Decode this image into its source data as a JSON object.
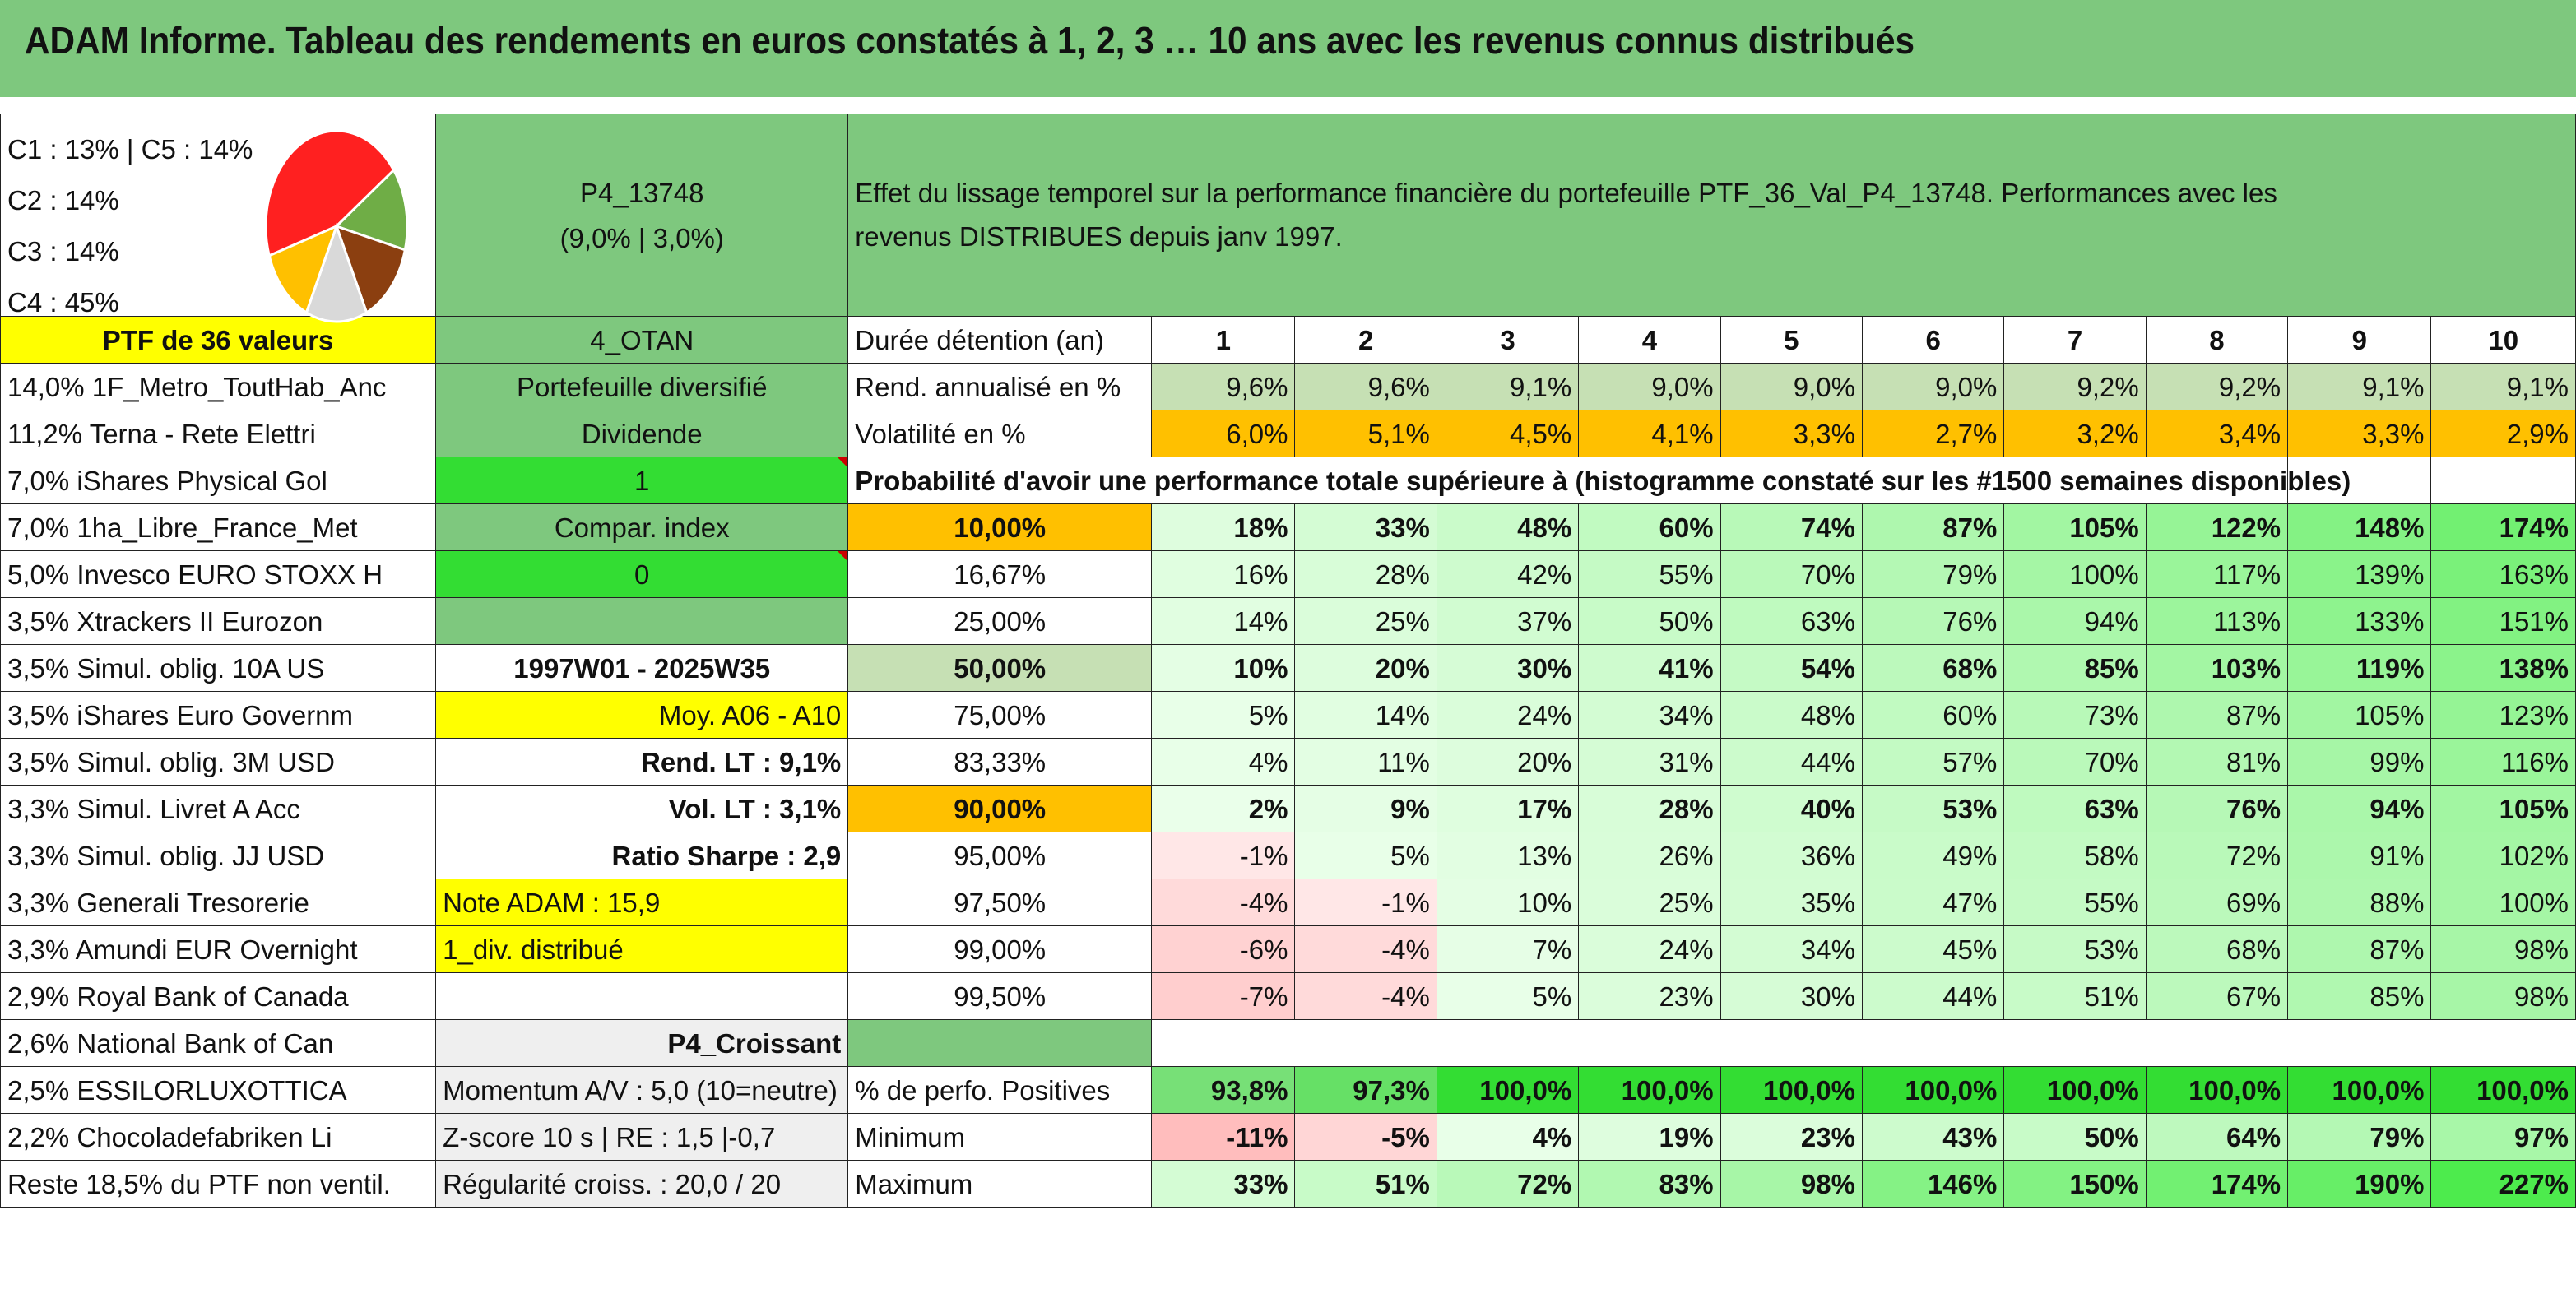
{
  "title": "ADAM Informe. Tableau des rendements en euros constatés à 1, 2, 3 … 10 ans avec les revenus connus distribués",
  "pie": {
    "labels": [
      "C1 : 13% | C5 : 14%",
      "C2 : 14%",
      "C3 : 14%",
      "C4 : 45%"
    ],
    "slices": [
      {
        "name": "C4",
        "value": 45,
        "color": "#ff2020"
      },
      {
        "name": "C5",
        "value": 14,
        "color": "#6fad46"
      },
      {
        "name": "C3",
        "value": 14,
        "color": "#8b3f10"
      },
      {
        "name": "C2",
        "value": 14,
        "color": "#d9d9d9"
      },
      {
        "name": "C1",
        "value": 13,
        "color": "#ffc000"
      }
    ]
  },
  "header": {
    "portfolio_code": "P4_13748",
    "portfolio_params": "(9,0% | 3,0%)",
    "description_line1": "Effet du lissage temporel sur la performance financière du portefeuille PTF_36_Val_P4_13748. Performances avec les",
    "description_line2": "revenus DISTRIBUES depuis janv 1997.",
    "ptf_count": "PTF de 36 valeurs",
    "group": "4_OTAN",
    "duration_label": "Durée détention (an)",
    "years": [
      "1",
      "2",
      "3",
      "4",
      "5",
      "6",
      "7",
      "8",
      "9",
      "10"
    ]
  },
  "holdings": [
    "14,0% 1F_Metro_ToutHab_Anc",
    "11,2% Terna - Rete Elettri",
    "7,0% iShares Physical Gol",
    "7,0% 1ha_Libre_France_Met",
    "5,0% Invesco EURO STOXX H",
    "3,5% Xtrackers II Eurozon",
    "3,5% Simul. oblig. 10A US",
    "3,5% iShares Euro Governm",
    "3,5% Simul. oblig. 3M USD",
    "3,3% Simul. Livret A Acc",
    "3,3% Simul. oblig. JJ USD",
    "3,3% Generali Tresorerie",
    "3,3% Amundi EUR Overnight",
    "2,9% Royal Bank of Canada",
    "2,6% National Bank of Can",
    "2,5% ESSILORLUXOTTICA",
    "2,2% Chocoladefabriken Li",
    "Reste 18,5% du PTF non ventil."
  ],
  "side": {
    "diversified": "Portefeuille diversifié",
    "dividend": "Dividende",
    "one": "1",
    "compar": "Compar. index",
    "zero": "0",
    "empty": "",
    "period": "1997W01 - 2025W35",
    "moy": "Moy. A06 - A10",
    "rend_lt": "Rend. LT : 9,1%",
    "vol_lt": "Vol. LT : 3,1%",
    "sharpe": "Ratio Sharpe : 2,9",
    "note": "Note ADAM : 15,9",
    "div": "1_div. distribué",
    "blank": "",
    "croissant": "P4_Croissant",
    "momentum": "Momentum A/V : 5,0 (10=neutre)",
    "zscore": "Z-score 10 s | RE : 1,5 |-0,7",
    "regularite": "Régularité croiss. : 20,0 / 20"
  },
  "stats": {
    "rend_label": "Rend. annualisé en %",
    "rend": [
      "9,6%",
      "9,6%",
      "9,1%",
      "9,0%",
      "9,0%",
      "9,0%",
      "9,2%",
      "9,2%",
      "9,1%",
      "9,1%"
    ],
    "vol_label": "Volatilité en %",
    "vol": [
      "6,0%",
      "5,1%",
      "4,5%",
      "4,1%",
      "3,3%",
      "2,7%",
      "3,2%",
      "3,4%",
      "3,3%",
      "2,9%"
    ],
    "prob_label": "Probabilité d'avoir une performance totale supérieure à (histogramme constaté sur les #1500 semaines disponibles)",
    "pos_label": "% de perfo. Positives",
    "pos": [
      "93,8%",
      "97,3%",
      "100,0%",
      "100,0%",
      "100,0%",
      "100,0%",
      "100,0%",
      "100,0%",
      "100,0%",
      "100,0%"
    ],
    "min_label": "Minimum",
    "min": [
      "-11%",
      "-5%",
      "4%",
      "19%",
      "23%",
      "43%",
      "50%",
      "64%",
      "79%",
      "97%"
    ],
    "max_label": "Maximum",
    "max": [
      "33%",
      "51%",
      "72%",
      "83%",
      "98%",
      "146%",
      "150%",
      "174%",
      "190%",
      "227%"
    ]
  },
  "quantiles": [
    {
      "p": "10,00%",
      "v": [
        "18%",
        "33%",
        "48%",
        "60%",
        "74%",
        "87%",
        "105%",
        "122%",
        "148%",
        "174%"
      ]
    },
    {
      "p": "16,67%",
      "v": [
        "16%",
        "28%",
        "42%",
        "55%",
        "70%",
        "79%",
        "100%",
        "117%",
        "139%",
        "163%"
      ]
    },
    {
      "p": "25,00%",
      "v": [
        "14%",
        "25%",
        "37%",
        "50%",
        "63%",
        "76%",
        "94%",
        "113%",
        "133%",
        "151%"
      ]
    },
    {
      "p": "50,00%",
      "v": [
        "10%",
        "20%",
        "30%",
        "41%",
        "54%",
        "68%",
        "85%",
        "103%",
        "119%",
        "138%"
      ]
    },
    {
      "p": "75,00%",
      "v": [
        "5%",
        "14%",
        "24%",
        "34%",
        "48%",
        "60%",
        "73%",
        "87%",
        "105%",
        "123%"
      ]
    },
    {
      "p": "83,33%",
      "v": [
        "4%",
        "11%",
        "20%",
        "31%",
        "44%",
        "57%",
        "70%",
        "81%",
        "99%",
        "116%"
      ]
    },
    {
      "p": "90,00%",
      "v": [
        "2%",
        "9%",
        "17%",
        "28%",
        "40%",
        "53%",
        "63%",
        "76%",
        "94%",
        "105%"
      ]
    },
    {
      "p": "95,00%",
      "v": [
        "-1%",
        "5%",
        "13%",
        "26%",
        "36%",
        "49%",
        "58%",
        "72%",
        "91%",
        "102%"
      ]
    },
    {
      "p": "97,50%",
      "v": [
        "-4%",
        "-1%",
        "10%",
        "25%",
        "35%",
        "47%",
        "55%",
        "69%",
        "88%",
        "100%"
      ]
    },
    {
      "p": "99,00%",
      "v": [
        "-6%",
        "-4%",
        "7%",
        "24%",
        "34%",
        "45%",
        "53%",
        "68%",
        "87%",
        "98%"
      ]
    },
    {
      "p": "99,50%",
      "v": [
        "-7%",
        "-4%",
        "5%",
        "23%",
        "30%",
        "44%",
        "51%",
        "67%",
        "85%",
        "98%"
      ]
    }
  ]
}
